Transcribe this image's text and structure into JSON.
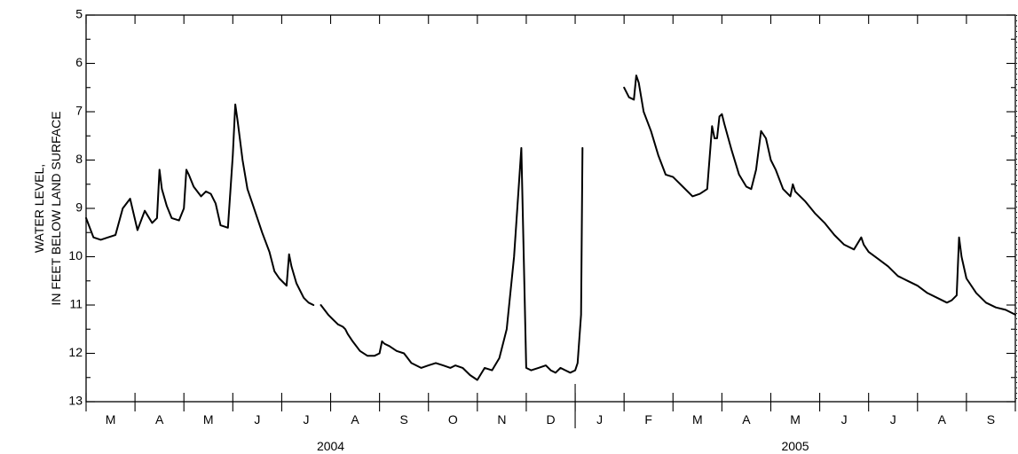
{
  "chart_data": {
    "type": "line",
    "title": "",
    "ylabel_lines": [
      "WATER LEVEL,",
      "IN FEET BELOW LAND SURFACE"
    ],
    "y_inverted": true,
    "ylim": [
      5,
      13
    ],
    "yticks": [
      5,
      6,
      7,
      8,
      9,
      10,
      11,
      12,
      13
    ],
    "grid": false,
    "x_range_months": [
      0,
      19
    ],
    "months": [
      "M",
      "A",
      "M",
      "J",
      "J",
      "A",
      "S",
      "O",
      "N",
      "D",
      "J",
      "F",
      "M",
      "A",
      "M",
      "J",
      "J",
      "A",
      "S"
    ],
    "years": [
      {
        "label": "2004",
        "start_month": 0,
        "end_month": 10
      },
      {
        "label": "2005",
        "start_month": 10,
        "end_month": 19
      }
    ],
    "series": [
      {
        "x": [
          0.0,
          0.15,
          0.3,
          0.45,
          0.6,
          0.75,
          0.9,
          1.05,
          1.2,
          1.35,
          1.45,
          1.5,
          1.55,
          1.65,
          1.75,
          1.9,
          2.0,
          2.05,
          2.1,
          2.2,
          2.35,
          2.45,
          2.55,
          2.65,
          2.75,
          2.9,
          3.0,
          3.05,
          3.1,
          3.2,
          3.3,
          3.4,
          3.5,
          3.6,
          3.75,
          3.85,
          3.95,
          4.05,
          4.1,
          4.15,
          4.2,
          4.3,
          4.45,
          4.55,
          4.65,
          4.8,
          4.95,
          5.05,
          5.15,
          5.25,
          5.3,
          5.35,
          5.45,
          5.6,
          5.75,
          5.9,
          6.0,
          6.05,
          6.1,
          6.2,
          6.35,
          6.5,
          6.65,
          6.85,
          7.0,
          7.15,
          7.3,
          7.45,
          7.55,
          7.7,
          7.85,
          8.0,
          8.15,
          8.3,
          8.45,
          8.6,
          8.75,
          8.9,
          9.0,
          9.1,
          9.25,
          9.4,
          9.5,
          9.6,
          9.7,
          9.8,
          9.9,
          10.0,
          10.05,
          10.12,
          10.15
        ],
        "values": [
          9.2,
          9.6,
          9.65,
          9.6,
          9.55,
          9.0,
          8.8,
          9.45,
          9.05,
          9.3,
          9.2,
          8.2,
          8.6,
          8.95,
          9.2,
          9.25,
          9.0,
          8.2,
          8.3,
          8.55,
          8.75,
          8.65,
          8.7,
          8.9,
          9.35,
          9.4,
          7.9,
          6.85,
          7.2,
          8.0,
          8.6,
          8.9,
          9.2,
          9.5,
          9.9,
          10.3,
          10.45,
          10.55,
          10.6,
          9.95,
          10.2,
          10.55,
          10.85,
          10.95,
          11.0,
          11.0,
          11.2,
          11.3,
          11.4,
          11.45,
          11.5,
          11.6,
          11.75,
          11.95,
          12.05,
          12.05,
          12.0,
          11.75,
          11.8,
          11.85,
          11.95,
          12.0,
          12.2,
          12.3,
          12.25,
          12.2,
          12.25,
          12.3,
          12.25,
          12.3,
          12.45,
          12.55,
          12.3,
          12.35,
          12.1,
          11.5,
          10.0,
          7.75,
          12.3,
          12.35,
          12.3,
          12.25,
          12.35,
          12.4,
          12.3,
          12.35,
          12.4,
          12.35,
          12.2,
          11.2,
          7.75
        ],
        "break_after_index": 44
      },
      {
        "x": [
          11.0,
          11.1,
          11.2,
          11.25,
          11.3,
          11.4,
          11.55,
          11.7,
          11.85,
          12.0,
          12.2,
          12.4,
          12.55,
          12.7,
          12.8,
          12.85,
          12.9,
          12.95,
          13.0,
          13.05,
          13.2,
          13.35,
          13.5,
          13.6,
          13.7,
          13.8,
          13.9,
          14.0,
          14.1,
          14.25,
          14.4,
          14.45,
          14.5,
          14.7,
          14.9,
          15.1,
          15.3,
          15.5,
          15.7,
          15.85,
          15.9,
          16.0,
          16.2,
          16.4,
          16.6,
          16.8,
          17.0,
          17.2,
          17.4,
          17.6,
          17.7,
          17.8,
          17.85,
          17.9,
          18.0,
          18.2,
          18.4,
          18.6,
          18.8,
          19.0
        ],
        "values": [
          6.5,
          6.7,
          6.75,
          6.25,
          6.4,
          7.0,
          7.4,
          7.9,
          8.3,
          8.35,
          8.55,
          8.75,
          8.7,
          8.6,
          7.3,
          7.55,
          7.55,
          7.1,
          7.05,
          7.25,
          7.8,
          8.3,
          8.55,
          8.6,
          8.2,
          7.4,
          7.55,
          8.0,
          8.2,
          8.6,
          8.75,
          8.5,
          8.65,
          8.85,
          9.1,
          9.3,
          9.55,
          9.75,
          9.85,
          9.6,
          9.75,
          9.9,
          10.05,
          10.2,
          10.4,
          10.5,
          10.6,
          10.75,
          10.85,
          10.95,
          10.9,
          10.8,
          9.6,
          10.0,
          10.45,
          10.75,
          10.95,
          11.05,
          11.1,
          11.2
        ]
      }
    ]
  }
}
